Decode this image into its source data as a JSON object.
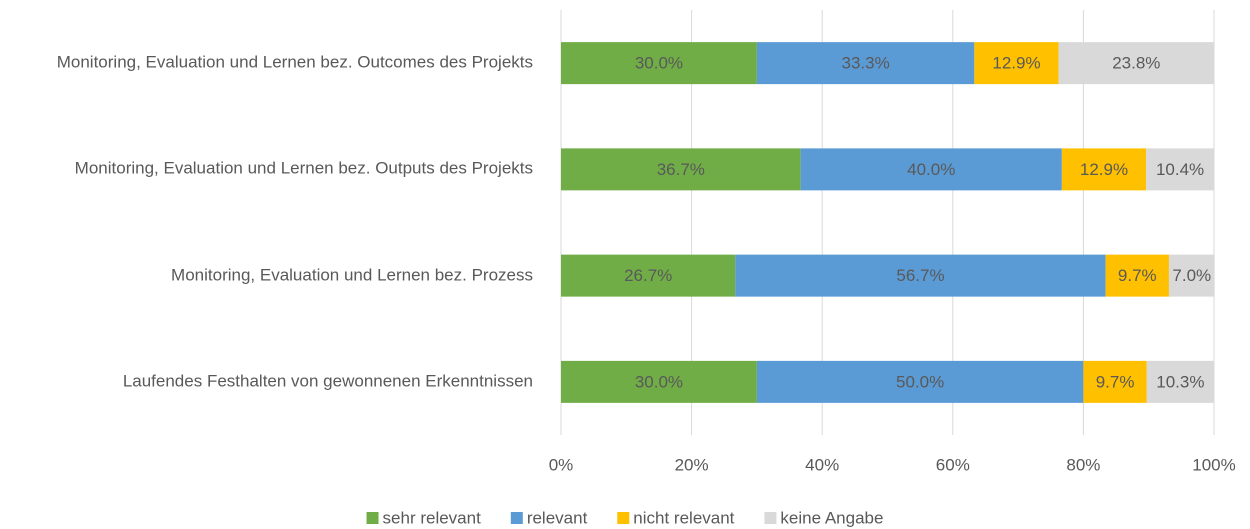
{
  "chart_data": {
    "type": "stacked_barh",
    "categories": [
      "Monitoring, Evaluation und Lernen bez. Outcomes des Projekts",
      "Monitoring, Evaluation und Lernen bez. Outputs des Projekts",
      "Monitoring, Evaluation und Lernen bez. Prozess",
      "Laufendes Festhalten von gewonnenen Erkenntnissen"
    ],
    "series": [
      {
        "name": "sehr relevant",
        "color": "#70ad47",
        "values": [
          30.0,
          36.7,
          26.7,
          30.0
        ],
        "value_labels": [
          "30.0%",
          "36.7%",
          "26.7%",
          "30.0%"
        ]
      },
      {
        "name": "relevant",
        "color": "#5b9bd5",
        "values": [
          33.3,
          40.0,
          56.7,
          50.0
        ],
        "value_labels": [
          "33.3%",
          "40.0%",
          "56.7%",
          "50.0%"
        ]
      },
      {
        "name": "nicht relevant",
        "color": "#ffc000",
        "values": [
          12.9,
          12.9,
          9.7,
          9.7
        ],
        "value_labels": [
          "12.9%",
          "12.9%",
          "9.7%",
          "9.7%"
        ]
      },
      {
        "name": "keine Angabe",
        "color": "#d9d9d9",
        "values": [
          23.8,
          10.4,
          7.0,
          10.3
        ],
        "value_labels": [
          "23.8%",
          "10.4%",
          "7.0%",
          "10.3%"
        ]
      }
    ],
    "xlim": [
      0,
      100
    ],
    "xticks": [
      {
        "value": 0,
        "label": "0%"
      },
      {
        "value": 20,
        "label": "20%"
      },
      {
        "value": 40,
        "label": "40%"
      },
      {
        "value": 60,
        "label": "60%"
      },
      {
        "value": 80,
        "label": "80%"
      },
      {
        "value": 100,
        "label": "100%"
      }
    ],
    "grid": true,
    "legend": "bottom"
  }
}
